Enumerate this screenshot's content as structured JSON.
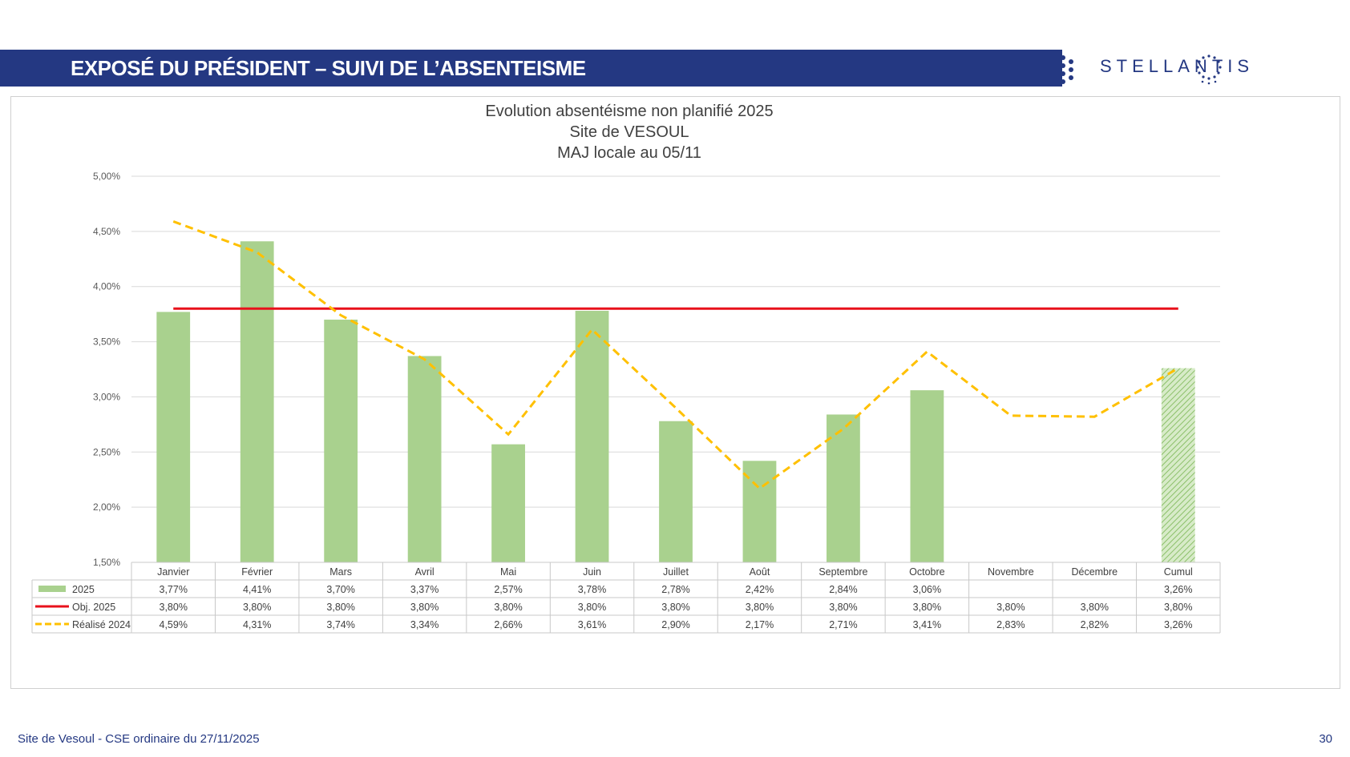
{
  "header": {
    "title": "EXPOSÉ DU PRÉSIDENT – SUIVI DE L’ABSENTEISME",
    "logo_text": "STELLANTIS"
  },
  "footer": {
    "left": "Site de Vesoul - CSE ordinaire du 27/11/2025",
    "page_number": "30"
  },
  "colors": {
    "banner": "#243882",
    "bar": "#a9d18e",
    "objective": "#e8111b",
    "realise": "#ffc000"
  },
  "chart_data": {
    "type": "bar",
    "title_lines": [
      "Evolution absentéisme non planifié 2025",
      "Site de VESOUL",
      "MAJ locale au 05/11"
    ],
    "categories": [
      "Janvier",
      "Février",
      "Mars",
      "Avril",
      "Mai",
      "Juin",
      "Juillet",
      "Août",
      "Septembre",
      "Octobre",
      "Novembre",
      "Décembre",
      "Cumul"
    ],
    "ylim": [
      1.5,
      5.0
    ],
    "y_ticks": [
      1.5,
      2.0,
      2.5,
      3.0,
      3.5,
      4.0,
      4.5,
      5.0
    ],
    "y_tick_labels": [
      "1,50%",
      "2,00%",
      "2,50%",
      "3,00%",
      "3,50%",
      "4,00%",
      "4,50%",
      "5,00%"
    ],
    "series": [
      {
        "name": "2025",
        "kind": "bar",
        "values": [
          3.77,
          4.41,
          3.7,
          3.37,
          2.57,
          3.78,
          2.78,
          2.42,
          2.84,
          3.06,
          null,
          null,
          3.26
        ],
        "labels": [
          "3,77%",
          "4,41%",
          "3,70%",
          "3,37%",
          "2,57%",
          "3,78%",
          "2,78%",
          "2,42%",
          "2,84%",
          "3,06%",
          "",
          "",
          "3,26%"
        ]
      },
      {
        "name": "Obj. 2025",
        "kind": "line",
        "values": [
          3.8,
          3.8,
          3.8,
          3.8,
          3.8,
          3.8,
          3.8,
          3.8,
          3.8,
          3.8,
          3.8,
          3.8,
          3.8
        ],
        "labels": [
          "3,80%",
          "3,80%",
          "3,80%",
          "3,80%",
          "3,80%",
          "3,80%",
          "3,80%",
          "3,80%",
          "3,80%",
          "3,80%",
          "3,80%",
          "3,80%",
          "3,80%"
        ]
      },
      {
        "name": "Réalisé 2024",
        "kind": "dashed-line",
        "values": [
          4.59,
          4.31,
          3.74,
          3.34,
          2.66,
          3.61,
          2.9,
          2.17,
          2.71,
          3.41,
          2.83,
          2.82,
          3.26
        ],
        "labels": [
          "4,59%",
          "4,31%",
          "3,74%",
          "3,34%",
          "2,66%",
          "3,61%",
          "2,90%",
          "2,17%",
          "2,71%",
          "3,41%",
          "2,83%",
          "2,82%",
          "3,26%"
        ]
      }
    ]
  }
}
